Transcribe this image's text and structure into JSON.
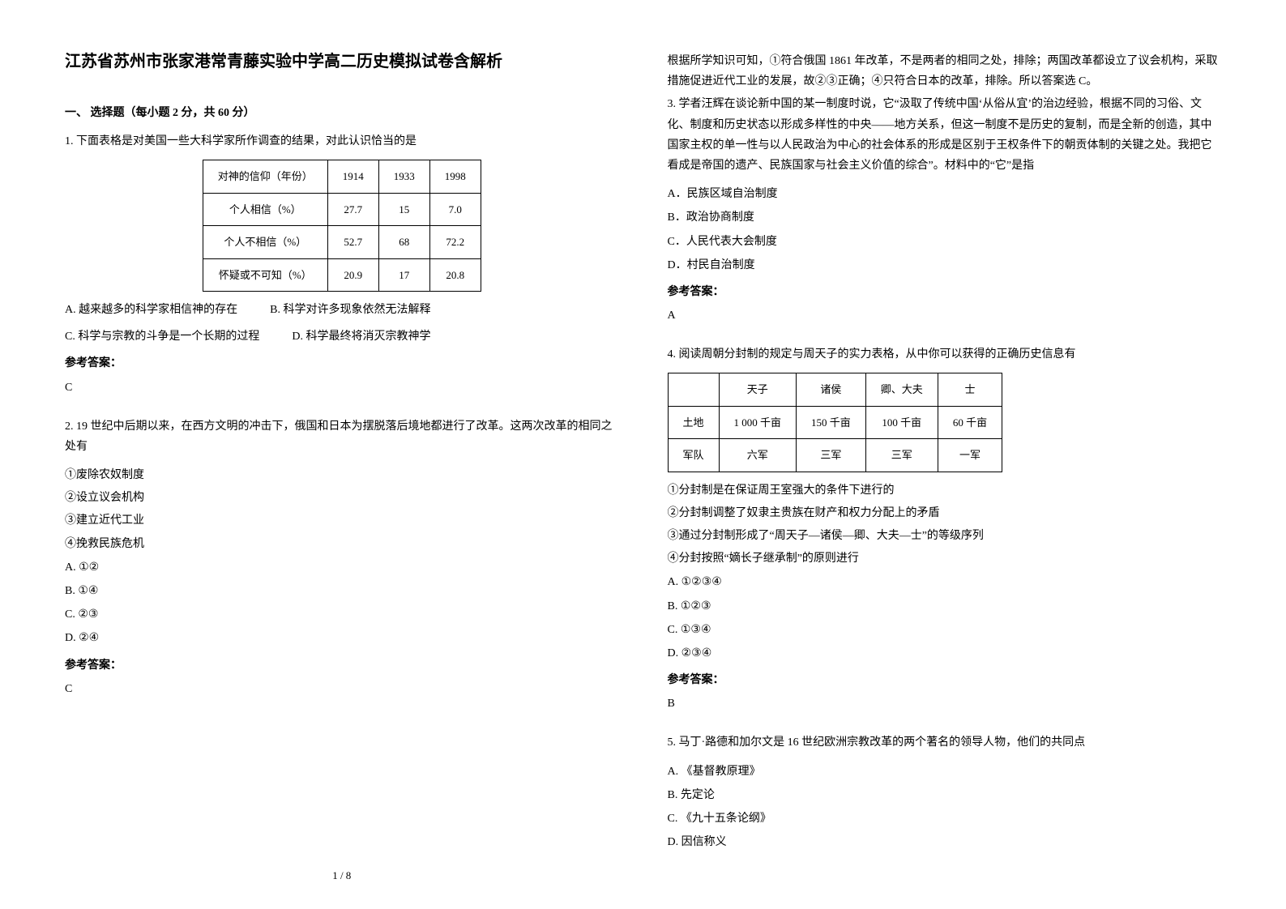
{
  "title": "江苏省苏州市张家港常青藤实验中学高二历史模拟试卷含解析",
  "section1_header": "一、 选择题（每小题 2 分，共 60 分）",
  "q1": {
    "text": "1. 下面表格是对美国一些大科学家所作调查的结果，对此认识恰当的是",
    "table": {
      "headers": [
        "对神的信仰（年份）",
        "1914",
        "1933",
        "1998"
      ],
      "rows": [
        [
          "个人相信（%）",
          "27.7",
          "15",
          "7.0"
        ],
        [
          "个人不相信（%）",
          "52.7",
          "68",
          "72.2"
        ],
        [
          "怀疑或不可知（%）",
          "20.9",
          "17",
          "20.8"
        ]
      ]
    },
    "optA": "A. 越来越多的科学家相信神的存在",
    "optB": "B. 科学对许多现象依然无法解释",
    "optC": "C. 科学与宗教的斗争是一个长期的过程",
    "optD": "D. 科学最终将消灭宗教神学",
    "answer_label": "参考答案：",
    "answer": "C"
  },
  "q2": {
    "text": "2. 19 世纪中后期以来，在西方文明的冲击下，俄国和日本为摆脱落后境地都进行了改革。这两次改革的相同之处有",
    "items": [
      "①废除农奴制度",
      "②设立议会机构",
      "③建立近代工业",
      "④挽救民族危机"
    ],
    "optA": "A. ①②",
    "optB": "B. ①④",
    "optC": "C. ②③",
    "optD": "D. ②④",
    "answer_label": "参考答案：",
    "answer": "C",
    "explanation": "根据所学知识可知，①符合俄国 1861 年改革，不是两者的相同之处，排除；两国改革都设立了议会机构，采取措施促进近代工业的发展，故②③正确；④只符合日本的改革，排除。所以答案选 C。"
  },
  "q3": {
    "text": "3. 学者汪辉在谈论新中国的某一制度时说，它“汲取了传统中国‘从俗从宜’的治边经验，根据不同的习俗、文化、制度和历史状态以形成多样性的中央——地方关系，但这一制度不是历史的复制，而是全新的创造，其中国家主权的单一性与以人民政治为中心的社会体系的形成是区别于王权条件下的朝贡体制的关键之处。我把它看成是帝国的遗产、民族国家与社会主义价值的综合”。材料中的“它”是指",
    "optA": "A．民族区域自治制度",
    "optB": "B．政治协商制度",
    "optC": "C．人民代表大会制度",
    "optD": "D．村民自治制度",
    "answer_label": "参考答案：",
    "answer": "A"
  },
  "q4": {
    "text": "4. 阅读周朝分封制的规定与周天子的实力表格，从中你可以获得的正确历史信息有",
    "table": {
      "headers": [
        "",
        "天子",
        "诸侯",
        "卿、大夫",
        "士"
      ],
      "rows": [
        [
          "土地",
          "1 000 千亩",
          "150 千亩",
          "100 千亩",
          "60 千亩"
        ],
        [
          "军队",
          "六军",
          "三军",
          "三军",
          "一军"
        ]
      ]
    },
    "items": [
      "①分封制是在保证周王室强大的条件下进行的",
      "②分封制调整了奴隶主贵族在财产和权力分配上的矛盾",
      "③通过分封制形成了“周天子—诸侯—卿、大夫—士”的等级序列",
      "④分封按照“嫡长子继承制”的原则进行"
    ],
    "optA": "A. ①②③④",
    "optB": "B. ①②③",
    "optC": "C. ①③④",
    "optD": "D. ②③④",
    "answer_label": "参考答案：",
    "answer": "B"
  },
  "q5": {
    "text": "5. 马丁·路德和加尔文是 16 世纪欧洲宗教改革的两个著名的领导人物，他们的共同点",
    "optA": "A. 《基督教原理》",
    "optB": "B. 先定论",
    "optC": "C. 《九十五条论纲》",
    "optD": "D. 因信称义"
  },
  "footer": "1 / 8"
}
